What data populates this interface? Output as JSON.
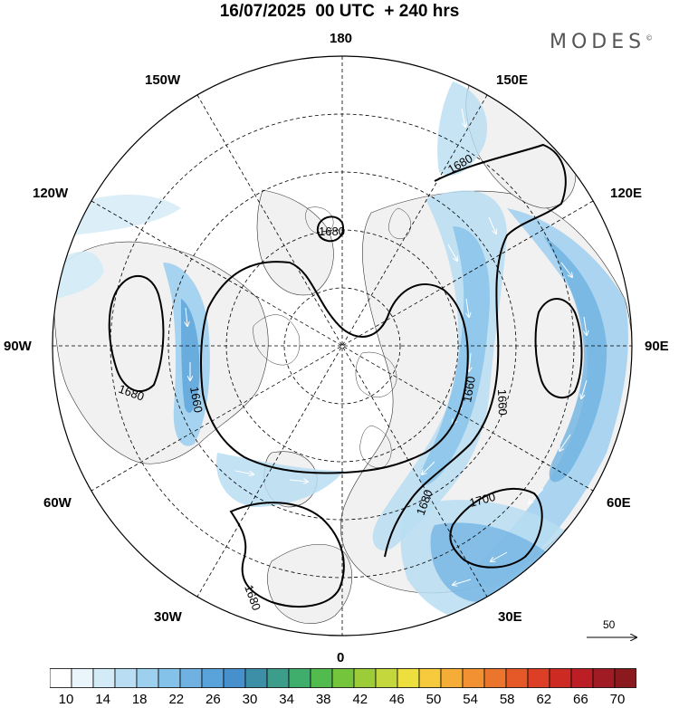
{
  "header": {
    "title": "16/07/2025  00 UTC  + 240 hrs",
    "brand": "MODES",
    "brand_mark": "©"
  },
  "map": {
    "projection": "north-polar-stereographic",
    "longitude_labels": {
      "lon_180": "180",
      "lon_150W": "150W",
      "lon_150E": "150E",
      "lon_120W": "120W",
      "lon_120E": "120E",
      "lon_90W": "90W",
      "lon_90E": "90E",
      "lon_60W": "60W",
      "lon_60E": "60E",
      "lon_30W": "30W",
      "lon_30E": "30E",
      "lon_0": "0"
    },
    "contour_labels": [
      "1680",
      "1680",
      "1660",
      "1660",
      "1660",
      "1680",
      "1680",
      "1680",
      "1700"
    ],
    "colors": {
      "land": "#f2f2f2",
      "contour": "#000000",
      "grid": "#000000"
    }
  },
  "reference_vector": {
    "label": "50"
  },
  "colorbar": {
    "labels": [
      "10",
      "14",
      "18",
      "22",
      "26",
      "30",
      "34",
      "38",
      "42",
      "46",
      "50",
      "54",
      "58",
      "62",
      "66",
      "70"
    ],
    "colors": [
      "#ffffff",
      "#eaf5fb",
      "#d3ebf7",
      "#b9ddf2",
      "#9dcfee",
      "#84c2e9",
      "#6fb2e2",
      "#5aa3da",
      "#4690ce",
      "#3d8fa8",
      "#3c9e8a",
      "#3fae6c",
      "#52bb4e",
      "#75c53c",
      "#9ccd39",
      "#c4d73c",
      "#ecdf3e",
      "#f7c93d",
      "#f6ad38",
      "#f29132",
      "#ec752d",
      "#e55928",
      "#dc3f25",
      "#ce2a24",
      "#bb1f25",
      "#a11b25",
      "#8b1a1e"
    ]
  }
}
